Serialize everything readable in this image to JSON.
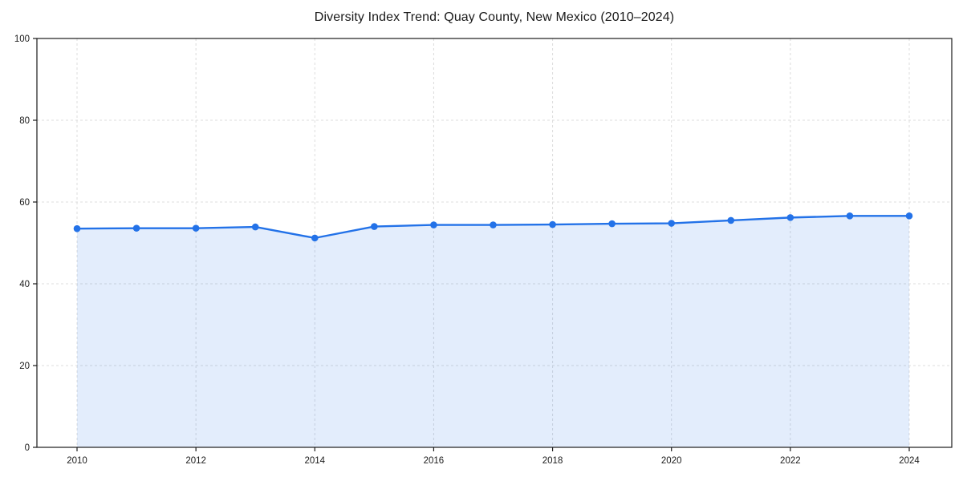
{
  "figure": {
    "background": "#ffffff"
  },
  "chart_data": {
    "type": "line",
    "title": "Diversity Index Trend: Quay County, New Mexico (2010–2024)",
    "x": [
      2010,
      2011,
      2012,
      2013,
      2014,
      2015,
      2016,
      2017,
      2018,
      2019,
      2020,
      2021,
      2022,
      2023,
      2024
    ],
    "values": [
      53.5,
      53.6,
      53.6,
      53.9,
      51.2,
      54.0,
      54.4,
      54.4,
      54.5,
      54.7,
      54.8,
      55.5,
      56.2,
      56.6,
      56.6
    ],
    "xlabel": "",
    "ylabel": "",
    "xlim": [
      2009.3,
      2024.7
    ],
    "ylim": [
      0,
      100
    ],
    "yticks": [
      0,
      20,
      40,
      60,
      80,
      100
    ],
    "xticks": [
      2010,
      2012,
      2014,
      2016,
      2018,
      2020,
      2022,
      2024
    ],
    "grid": true,
    "grid_style": "dashed",
    "legend": "none",
    "marker": "circle",
    "area_fill": true,
    "line_color": "#2372e8",
    "marker_color": "#2372e8",
    "fill_opacity": 0.13,
    "grid_color": "#dcdcdc",
    "spine_color": "#1a1a1a",
    "text_color": "#1a1a1a"
  }
}
